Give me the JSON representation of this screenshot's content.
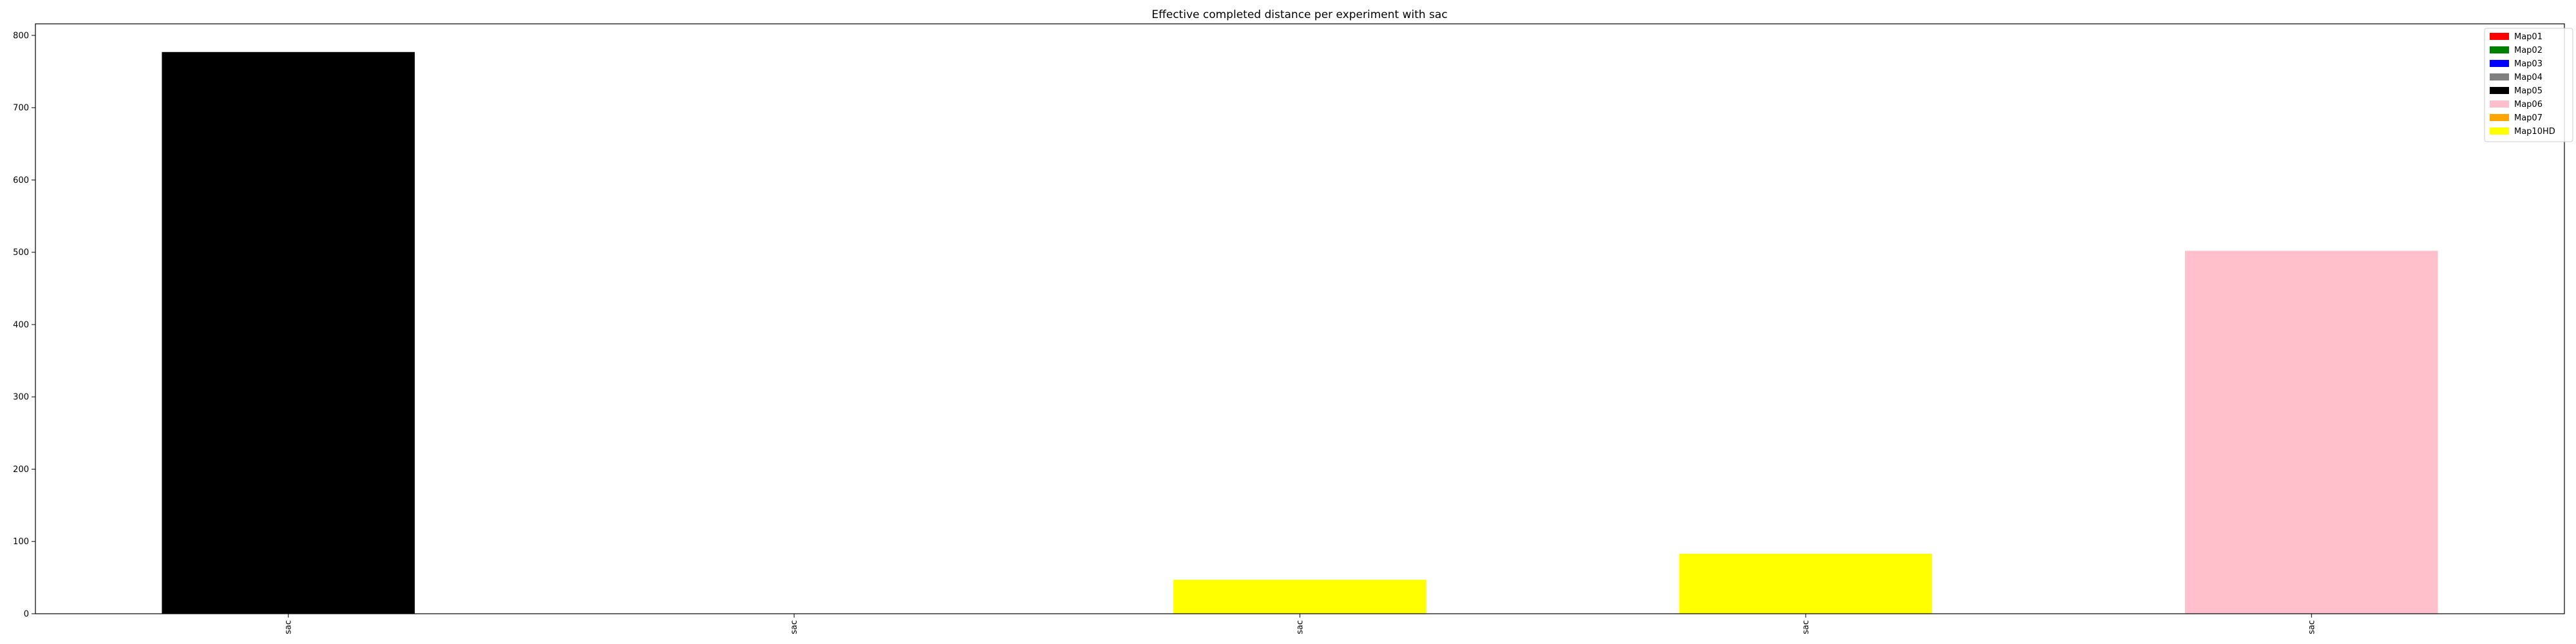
{
  "chart_data": {
    "type": "bar",
    "title": "Effective completed distance per experiment with sac",
    "xlabel": "",
    "ylabel": "",
    "categories": [
      "sac",
      "sac",
      "sac",
      "sac",
      "sac"
    ],
    "values": [
      777,
      0,
      47,
      83,
      502
    ],
    "bar_colors": [
      "#000000",
      "#ffffff",
      "#ffff00",
      "#ffff00",
      "#ffc0cb"
    ],
    "ylim": [
      0,
      816
    ],
    "yticks": [
      0,
      100,
      200,
      300,
      400,
      500,
      600,
      700,
      800
    ],
    "grid": false,
    "legend_position": "top-right",
    "legend": [
      {
        "label": "Map01",
        "color": "#ff0000"
      },
      {
        "label": "Map02",
        "color": "#008000"
      },
      {
        "label": "Map03",
        "color": "#0000ff"
      },
      {
        "label": "Map04",
        "color": "#808080"
      },
      {
        "label": "Map05",
        "color": "#000000"
      },
      {
        "label": "Map06",
        "color": "#ffc0cb"
      },
      {
        "label": "Map07",
        "color": "#ffa500"
      },
      {
        "label": "Map10HD",
        "color": "#ffff00"
      }
    ]
  }
}
